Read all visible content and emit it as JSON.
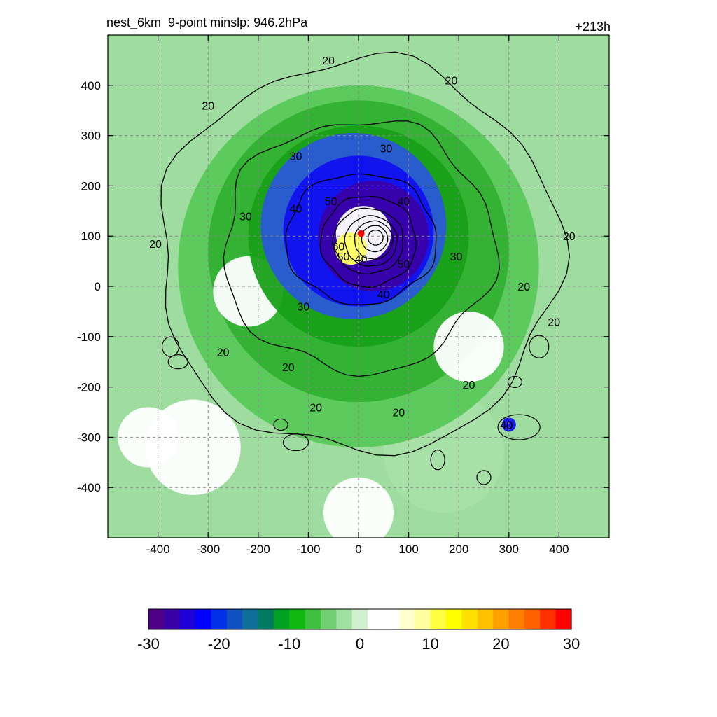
{
  "chart_data": {
    "type": "heatmap",
    "title_left": "nest_6km  9-point minslp: 946.2hPa",
    "title_right": "+213h",
    "xlabel": "",
    "ylabel": "",
    "xlim": [
      -500,
      500
    ],
    "ylim": [
      -500,
      500
    ],
    "x_ticks": [
      -400,
      -300,
      -200,
      -100,
      0,
      100,
      200,
      300,
      400
    ],
    "y_ticks": [
      -400,
      -300,
      -200,
      -100,
      0,
      100,
      200,
      300,
      400
    ],
    "grid": true,
    "colorbar": {
      "orientation": "horizontal",
      "range": [
        -30,
        30
      ],
      "ticks": [
        -30,
        -20,
        -10,
        0,
        10,
        20,
        30
      ],
      "colors": [
        "#4b0087",
        "#3a00a8",
        "#2000d8",
        "#0000ff",
        "#0030e8",
        "#1050c0",
        "#10709a",
        "#007a60",
        "#00a020",
        "#10b810",
        "#40c040",
        "#70d070",
        "#a0e0a0",
        "#d0f0d0",
        "#ffffff",
        "#ffffff",
        "#ffffd0",
        "#ffffa0",
        "#ffff40",
        "#ffff00",
        "#ffe000",
        "#ffc000",
        "#ffa000",
        "#ff8000",
        "#ff6000",
        "#ff3000",
        "#ff0000"
      ]
    },
    "contour_levels": [
      20,
      30,
      40,
      50,
      60
    ],
    "contour_labels": [
      {
        "x": -60,
        "y": 450,
        "text": "20"
      },
      {
        "x": 185,
        "y": 410,
        "text": "20"
      },
      {
        "x": -300,
        "y": 360,
        "text": "20"
      },
      {
        "x": -125,
        "y": 260,
        "text": "30"
      },
      {
        "x": 55,
        "y": 275,
        "text": "30"
      },
      {
        "x": -225,
        "y": 140,
        "text": "30"
      },
      {
        "x": -405,
        "y": 85,
        "text": "20"
      },
      {
        "x": -125,
        "y": 155,
        "text": "40"
      },
      {
        "x": -55,
        "y": 170,
        "text": "50"
      },
      {
        "x": 90,
        "y": 170,
        "text": "40"
      },
      {
        "x": -40,
        "y": 80,
        "text": "60"
      },
      {
        "x": -30,
        "y": 60,
        "text": "50"
      },
      {
        "x": 5,
        "y": 55,
        "text": "40"
      },
      {
        "x": 90,
        "y": 45,
        "text": "50"
      },
      {
        "x": 195,
        "y": 60,
        "text": "30"
      },
      {
        "x": 50,
        "y": -15,
        "text": "40"
      },
      {
        "x": -110,
        "y": -40,
        "text": "30"
      },
      {
        "x": 330,
        "y": 0,
        "text": "20"
      },
      {
        "x": 420,
        "y": 100,
        "text": "20"
      },
      {
        "x": 390,
        "y": -70,
        "text": "20"
      },
      {
        "x": -270,
        "y": -130,
        "text": "20"
      },
      {
        "x": -140,
        "y": -160,
        "text": "20"
      },
      {
        "x": -85,
        "y": -240,
        "text": "20"
      },
      {
        "x": 220,
        "y": -195,
        "text": "20"
      },
      {
        "x": 80,
        "y": -250,
        "text": "20"
      },
      {
        "x": 295,
        "y": -275,
        "text": "40"
      }
    ],
    "center_marker": {
      "x": 5,
      "y": 105,
      "color": "#ff0000"
    }
  }
}
